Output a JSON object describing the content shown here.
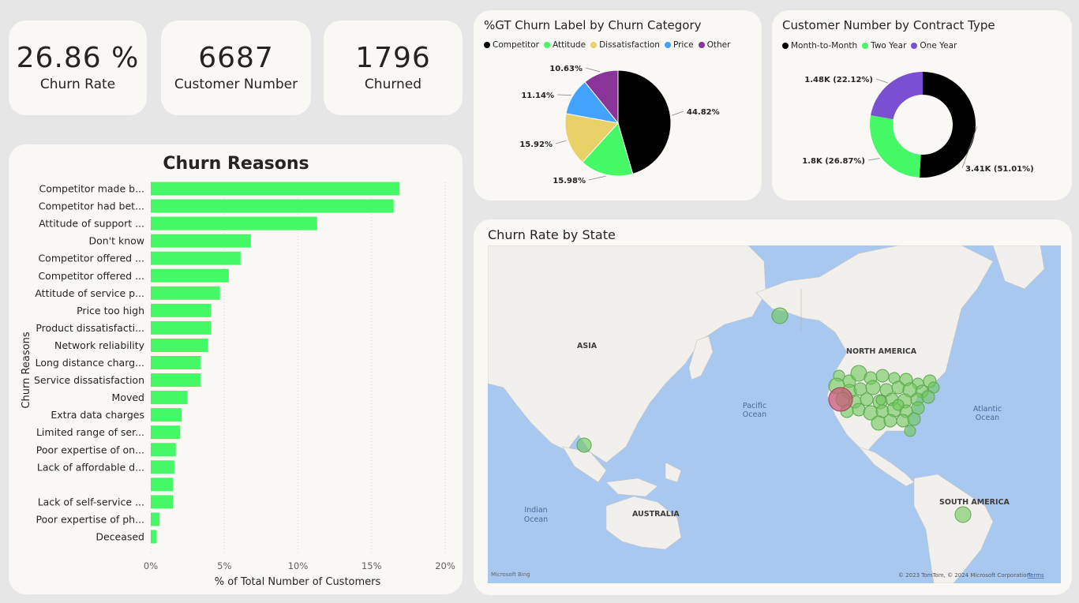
{
  "kpis": {
    "churn_rate": {
      "value": "26.86 %",
      "label": "Churn Rate"
    },
    "customers": {
      "value": "6687",
      "label": "Customer Number"
    },
    "churned": {
      "value": "1796",
      "label": "Churned"
    }
  },
  "colors": {
    "bar": "#45f966",
    "competitor": "#000000",
    "attitude": "#45f966",
    "dissatisfaction": "#e8d166",
    "price": "#41a3ff",
    "other": "#8a3499",
    "one_year": "#7b4fd1"
  },
  "chart_data": [
    {
      "type": "bar",
      "orientation": "horizontal",
      "title": "Churn Reasons",
      "xlabel": "% of Total Number of Customers",
      "ylabel": "Churn Reasons",
      "xlim": [
        0,
        20
      ],
      "xticks": [
        "0%",
        "5%",
        "10%",
        "15%",
        "20%"
      ],
      "categories": [
        "Competitor made b...",
        "Competitor had bet...",
        "Attitude of support ...",
        "Don't know",
        "Competitor offered ...",
        "Competitor offered ...",
        "Attitude of service p...",
        "Price too high",
        "Product dissatisfacti...",
        "Network reliability",
        "Long distance charg...",
        "Service dissatisfaction",
        "Moved",
        "Extra data charges",
        "Limited range of ser...",
        "Poor expertise of on...",
        "Lack of affordable d...",
        "",
        "Lack of self-service ...",
        "Poor expertise of ph...",
        "Deceased"
      ],
      "values": [
        16.9,
        16.5,
        11.3,
        6.8,
        6.1,
        5.3,
        4.7,
        4.1,
        4.1,
        3.9,
        3.4,
        3.4,
        2.5,
        2.1,
        2.0,
        1.7,
        1.6,
        1.5,
        1.5,
        0.6,
        0.4
      ]
    },
    {
      "type": "pie",
      "title": "%GT Churn Label by Churn Category",
      "categories": [
        "Competitor",
        "Attitude",
        "Dissatisfaction",
        "Price",
        "Other"
      ],
      "values": [
        44.82,
        15.98,
        15.92,
        11.14,
        10.63
      ],
      "labels": [
        "44.82%",
        "15.98%",
        "15.92%",
        "11.14%",
        "10.63%"
      ]
    },
    {
      "type": "pie",
      "subtype": "donut",
      "title": "Customer Number by Contract Type",
      "categories": [
        "Month-to-Month",
        "Two Year",
        "One Year"
      ],
      "values": [
        3.41,
        1.8,
        1.48
      ],
      "labels": [
        "3.41K (51.01%)",
        "1.8K (26.87%)",
        "1.48K (22.12%)"
      ]
    }
  ],
  "map": {
    "title": "Churn Rate by State",
    "labels": {
      "asia": "ASIA",
      "north_america": "NORTH AMERICA",
      "pacific": "Pacific Ocean",
      "atlantic": "Atlantic Ocean",
      "indian": "Indian Ocean",
      "australia": "AUSTRALIA",
      "south_america": "SOUTH AMERICA"
    },
    "attribution": "© 2023 TomTom, © 2024 Microsoft Corporation",
    "terms": "Terms",
    "bing": "Microsoft Bing"
  }
}
